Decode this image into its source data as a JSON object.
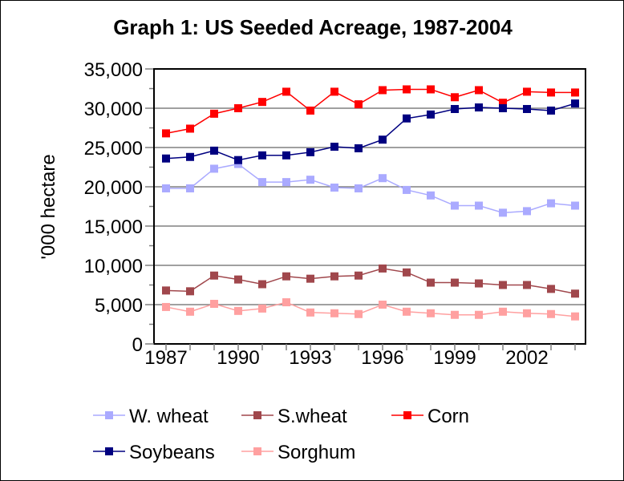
{
  "chart_data": {
    "type": "line",
    "title": "Graph 1: US Seeded Acreage, 1987-2004",
    "xlabel": "",
    "ylabel": "'000 hectare",
    "x": [
      1987,
      1988,
      1989,
      1990,
      1991,
      1992,
      1993,
      1994,
      1995,
      1996,
      1997,
      1998,
      1999,
      2000,
      2001,
      2002,
      2003,
      2004
    ],
    "x_tick_labels": [
      "1987",
      "1990",
      "1993",
      "1996",
      "1999",
      "2002"
    ],
    "x_tick_values": [
      1987,
      1990,
      1993,
      1996,
      1999,
      2002
    ],
    "ylim": [
      0,
      35000
    ],
    "y_tick_values": [
      0,
      5000,
      10000,
      15000,
      20000,
      25000,
      30000,
      35000
    ],
    "y_tick_labels": [
      "0",
      "5,000",
      "10,000",
      "15,000",
      "20,000",
      "25,000",
      "30,000",
      "35,000"
    ],
    "grid": true,
    "legend_position": "bottom",
    "series": [
      {
        "name": "W. wheat",
        "color": "#aaaaff",
        "values": [
          19800,
          19800,
          22300,
          22900,
          20600,
          20600,
          20900,
          19900,
          19800,
          21100,
          19600,
          18900,
          17600,
          17600,
          16700,
          16900,
          17900,
          17600
        ]
      },
      {
        "name": "S.wheat",
        "color": "#a0474c",
        "values": [
          6800,
          6700,
          8700,
          8200,
          7600,
          8600,
          8300,
          8600,
          8700,
          9600,
          9100,
          7800,
          7800,
          7700,
          7500,
          7500,
          7000,
          6400
        ]
      },
      {
        "name": "Corn",
        "color": "#ff0000",
        "values": [
          26800,
          27400,
          29300,
          30000,
          30800,
          32100,
          29700,
          32100,
          30500,
          32300,
          32400,
          32400,
          31400,
          32300,
          30700,
          32100,
          32000,
          32000
        ]
      },
      {
        "name": "Soybeans",
        "color": "#000080",
        "values": [
          23600,
          23800,
          24600,
          23400,
          24000,
          24000,
          24400,
          25100,
          24900,
          26000,
          28700,
          29200,
          29900,
          30100,
          30000,
          29900,
          29700,
          30600
        ]
      },
      {
        "name": "Sorghum",
        "color": "#ffa0a0",
        "values": [
          4700,
          4100,
          5100,
          4200,
          4500,
          5300,
          4000,
          3900,
          3800,
          5000,
          4100,
          3900,
          3700,
          3700,
          4100,
          3900,
          3800,
          3500
        ]
      }
    ]
  }
}
